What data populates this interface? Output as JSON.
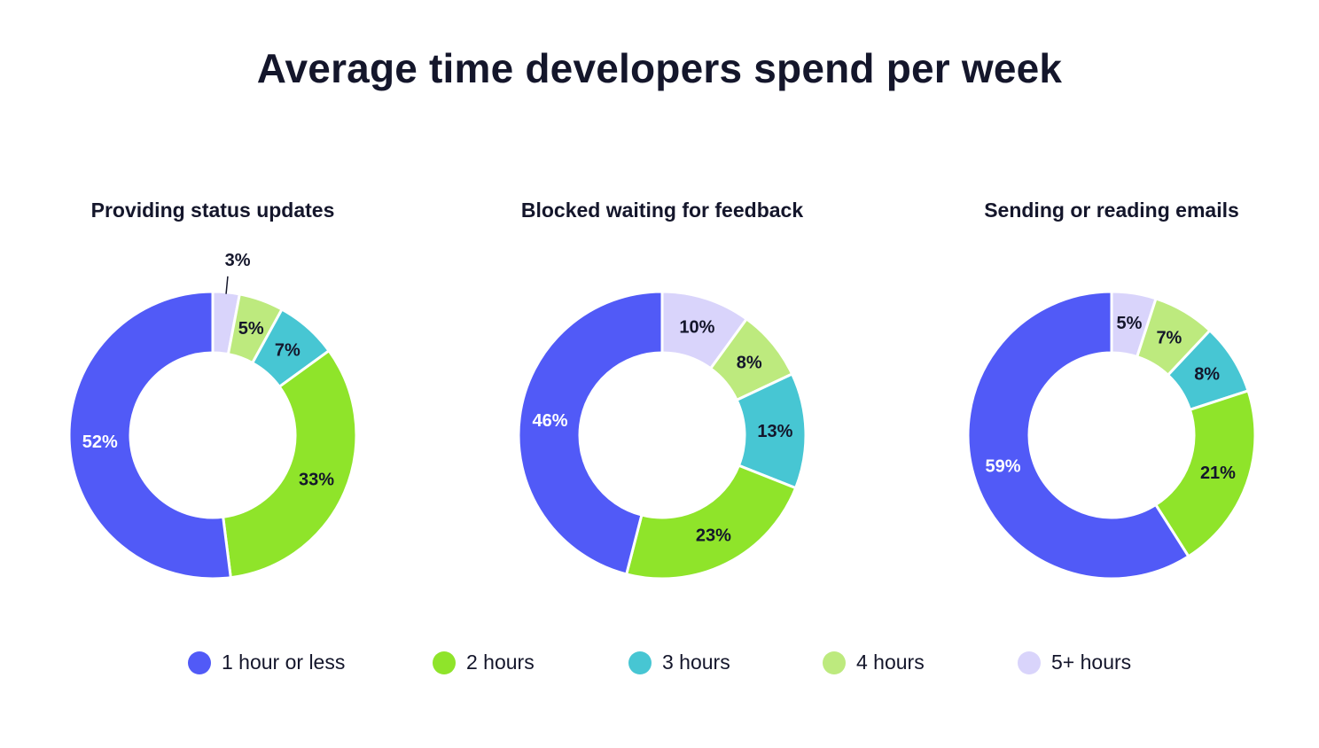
{
  "title": "Average time developers spend per week",
  "legend": {
    "placement": "bottom",
    "items": [
      {
        "label": "1 hour or less",
        "color": "#515af7"
      },
      {
        "label": "2 hours",
        "color": "#8fe42a"
      },
      {
        "label": "3 hours",
        "color": "#47c6d3"
      },
      {
        "label": "4 hours",
        "color": "#bdea7e"
      },
      {
        "label": "5+ hours",
        "color": "#d9d4fb"
      }
    ]
  },
  "chart_data": [
    {
      "type": "pie",
      "title": "Providing status updates",
      "series": [
        {
          "name": "1 hour or less",
          "value": 52,
          "label": "52%"
        },
        {
          "name": "2 hours",
          "value": 33,
          "label": "33%"
        },
        {
          "name": "3 hours",
          "value": 7,
          "label": "7%"
        },
        {
          "name": "4 hours",
          "value": 5,
          "label": "5%"
        },
        {
          "name": "5+ hours",
          "value": 3,
          "label": "3%"
        }
      ]
    },
    {
      "type": "pie",
      "title": "Blocked waiting for feedback",
      "series": [
        {
          "name": "1 hour or less",
          "value": 46,
          "label": "46%"
        },
        {
          "name": "2 hours",
          "value": 23,
          "label": "23%"
        },
        {
          "name": "3 hours",
          "value": 13,
          "label": "13%"
        },
        {
          "name": "4 hours",
          "value": 8,
          "label": "8%"
        },
        {
          "name": "5+ hours",
          "value": 10,
          "label": "10%"
        }
      ]
    },
    {
      "type": "pie",
      "title": "Sending or reading emails",
      "series": [
        {
          "name": "1 hour or less",
          "value": 59,
          "label": "59%"
        },
        {
          "name": "2 hours",
          "value": 21,
          "label": "21%"
        },
        {
          "name": "3 hours",
          "value": 8,
          "label": "8%"
        },
        {
          "name": "4 hours",
          "value": 7,
          "label": "7%"
        },
        {
          "name": "5+ hours",
          "value": 5,
          "label": "5%"
        }
      ]
    }
  ]
}
